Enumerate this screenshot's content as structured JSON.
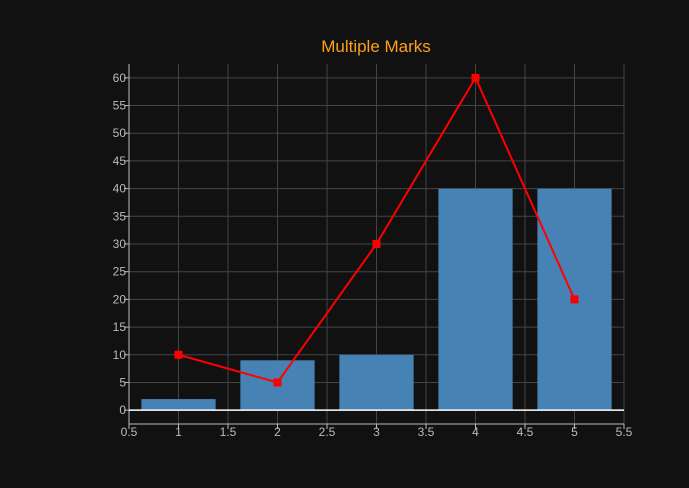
{
  "chart_data": {
    "type": "bar",
    "title": "Multiple Marks",
    "xlabel": "",
    "ylabel": "",
    "xlim": [
      0.5,
      5.5
    ],
    "ylim": [
      -2.5,
      62.5
    ],
    "x_ticks": [
      "0.5",
      "1",
      "1.5",
      "2",
      "2.5",
      "3",
      "3.5",
      "4",
      "4.5",
      "5",
      "5.5"
    ],
    "y_ticks": [
      "0",
      "5",
      "10",
      "15",
      "20",
      "25",
      "30",
      "35",
      "40",
      "45",
      "50",
      "55",
      "60"
    ],
    "grid": true,
    "series": [
      {
        "type": "bar",
        "x": [
          1,
          2,
          3,
          4,
          5
        ],
        "values": [
          2,
          9,
          10,
          40,
          40
        ],
        "bar_width": 0.75
      },
      {
        "type": "line",
        "x": [
          1,
          2,
          3,
          4,
          5
        ],
        "values": [
          10,
          5,
          30,
          60,
          20
        ],
        "marker": "square"
      }
    ],
    "colors": {
      "background": "#111111",
      "title": "#ff9f1c",
      "bar": "#4682b4",
      "line": "#ff0000",
      "grid": "#444444",
      "axis": "#bbbbbb"
    }
  }
}
